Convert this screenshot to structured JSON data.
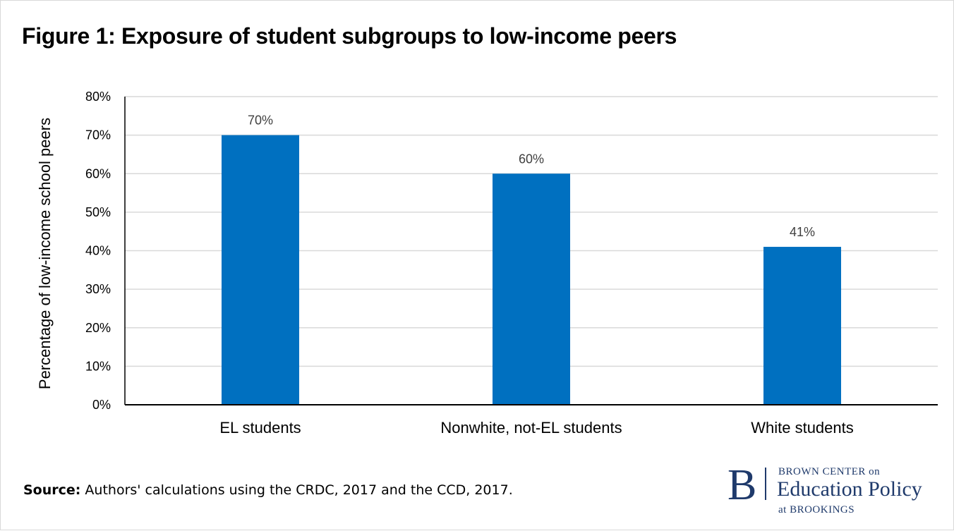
{
  "chart_data": {
    "type": "bar",
    "title": "Figure 1: Exposure of student subgroups to low-income peers",
    "ylabel": "Percentage of low-income school peers",
    "xlabel": "",
    "categories": [
      "EL students",
      "Nonwhite, not-EL students",
      "White students"
    ],
    "values": [
      70,
      60,
      41
    ],
    "data_labels": [
      "70%",
      "60%",
      "41%"
    ],
    "yticks": [
      "0%",
      "10%",
      "20%",
      "30%",
      "40%",
      "50%",
      "60%",
      "70%",
      "80%"
    ],
    "ylim": [
      0,
      80
    ],
    "grid": true,
    "bar_color": "#0070c0"
  },
  "source": {
    "label": "Source:",
    "text": " Authors' calculations using the CRDC, 2017 and the CCD, 2017."
  },
  "logo": {
    "letter": "B",
    "line1": "BROWN CENTER on",
    "line2": "Education Policy",
    "line3": "at BROOKINGS"
  }
}
